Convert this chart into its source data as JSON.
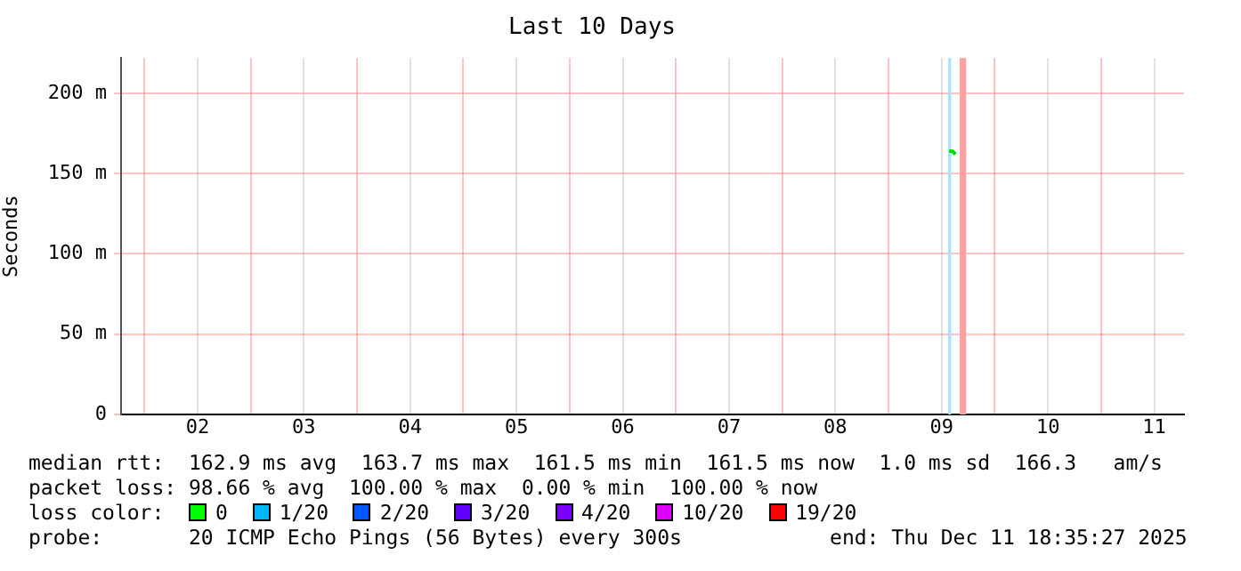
{
  "chart_data": {
    "type": "line",
    "title": "Last 10 Days",
    "ylabel": "Seconds",
    "xlim": [
      1.78,
      11.78
    ],
    "xticks": [
      {
        "value": 2,
        "label": null
      },
      {
        "value": 2.5,
        "label": "02"
      },
      {
        "value": 3,
        "label": null
      },
      {
        "value": 3.5,
        "label": "03"
      },
      {
        "value": 4,
        "label": null
      },
      {
        "value": 4.5,
        "label": "04"
      },
      {
        "value": 5,
        "label": null
      },
      {
        "value": 5.5,
        "label": "05"
      },
      {
        "value": 6,
        "label": null
      },
      {
        "value": 6.5,
        "label": "06"
      },
      {
        "value": 7,
        "label": null
      },
      {
        "value": 7.5,
        "label": "07"
      },
      {
        "value": 8,
        "label": null
      },
      {
        "value": 8.5,
        "label": "08"
      },
      {
        "value": 9,
        "label": null
      },
      {
        "value": 9.5,
        "label": "09"
      },
      {
        "value": 10,
        "label": null
      },
      {
        "value": 10.5,
        "label": "10"
      },
      {
        "value": 11,
        "label": null
      },
      {
        "value": 11.5,
        "label": "11"
      }
    ],
    "ylim": [
      0,
      222
    ],
    "yticks": [
      {
        "value": 0,
        "label": "0"
      },
      {
        "value": 50,
        "label": "50 m"
      },
      {
        "value": 100,
        "label": "100 m"
      },
      {
        "value": 150,
        "label": "150 m"
      },
      {
        "value": 200,
        "label": "200 m"
      }
    ],
    "grid": true,
    "marker": "none",
    "series": [
      {
        "color": "#00dd00",
        "x": [
          9.57,
          9.6,
          9.63
        ],
        "values": [
          164,
          164,
          162
        ]
      }
    ],
    "bands": [
      {
        "axis": "x",
        "from": 9.56,
        "to": 9.59,
        "color": "#a8e4ff"
      },
      {
        "axis": "x",
        "from": 9.67,
        "to": 9.73,
        "color": "#ffa0a0"
      }
    ],
    "annotations": [
      "median rtt:  162.9 ms avg  163.7 ms max  161.5 ms min  161.5 ms now  1.0 ms sd  166.3   am/s",
      "packet loss: 98.66 % avg  100.00 % max  0.00 % min  100.00 % now",
      "loss color:  0  1/20  2/20  3/20  4/20  10/20  19/20",
      "probe:       20 ICMP Echo Pings (56 Bytes) every 300s            end: Thu Dec 11 18:35:27 2025"
    ]
  }
}
